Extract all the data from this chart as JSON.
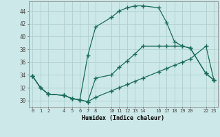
{
  "xlabel": "Humidex (Indice chaleur)",
  "bg_color": "#cce8e8",
  "grid_color": "#b0d0d0",
  "line_color": "#1a6b5a",
  "xlim": [
    -0.5,
    23.5
  ],
  "ylim": [
    29.0,
    45.5
  ],
  "xticks": [
    0,
    1,
    2,
    4,
    5,
    6,
    7,
    8,
    10,
    11,
    12,
    13,
    14,
    16,
    17,
    18,
    19,
    20,
    22,
    23
  ],
  "yticks": [
    30,
    32,
    34,
    36,
    38,
    40,
    42,
    44
  ],
  "line1_x": [
    0,
    1,
    2,
    4,
    5,
    6,
    7,
    8,
    10,
    11,
    12,
    13,
    14,
    16,
    17,
    18,
    19,
    20,
    22,
    23
  ],
  "line1_y": [
    33.8,
    32.0,
    31.0,
    30.8,
    30.3,
    30.1,
    37.0,
    41.5,
    43.0,
    44.0,
    44.5,
    44.8,
    44.8,
    44.5,
    42.2,
    39.2,
    38.5,
    38.2,
    34.2,
    33.2
  ],
  "line2_x": [
    0,
    1,
    2,
    4,
    5,
    6,
    7,
    8,
    10,
    11,
    12,
    13,
    14,
    16,
    17,
    18,
    19,
    20,
    22,
    23
  ],
  "line2_y": [
    33.8,
    32.0,
    31.0,
    30.8,
    30.3,
    30.1,
    29.8,
    30.5,
    31.5,
    32.0,
    32.5,
    33.0,
    33.5,
    34.5,
    35.0,
    35.5,
    36.0,
    36.5,
    38.5,
    33.2
  ],
  "line3_x": [
    0,
    1,
    2,
    4,
    5,
    6,
    7,
    8,
    10,
    11,
    12,
    13,
    14,
    16,
    17,
    18,
    19,
    20,
    22,
    23
  ],
  "line3_y": [
    33.8,
    32.0,
    31.0,
    30.8,
    30.3,
    30.1,
    29.8,
    33.5,
    34.0,
    35.2,
    36.2,
    37.3,
    38.5,
    38.5,
    38.5,
    38.5,
    38.5,
    38.2,
    34.2,
    33.2
  ]
}
